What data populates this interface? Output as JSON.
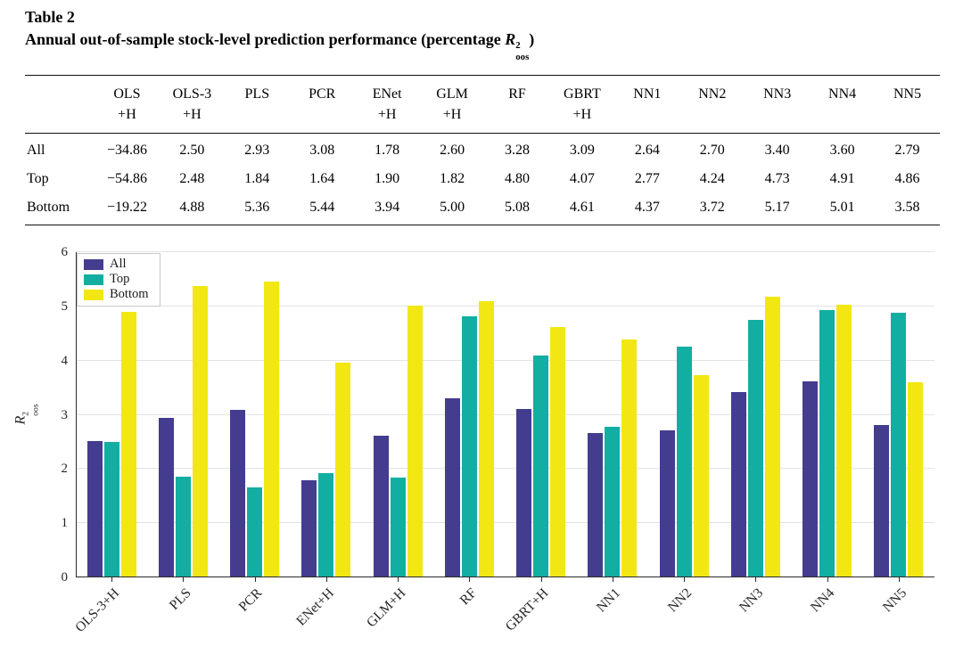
{
  "table": {
    "label": "Table 2",
    "caption_prefix": "Annual out-of-sample stock-level prediction performance (percentage ",
    "caption_math": {
      "base": "R",
      "sup": "2",
      "sub": "oos"
    },
    "caption_suffix": ")",
    "columns": [
      {
        "line1": "OLS",
        "line2": "+H"
      },
      {
        "line1": "OLS-3",
        "line2": "+H"
      },
      {
        "line1": "PLS",
        "line2": ""
      },
      {
        "line1": "PCR",
        "line2": ""
      },
      {
        "line1": "ENet",
        "line2": "+H"
      },
      {
        "line1": "GLM",
        "line2": "+H"
      },
      {
        "line1": "RF",
        "line2": ""
      },
      {
        "line1": "GBRT",
        "line2": "+H"
      },
      {
        "line1": "NN1",
        "line2": ""
      },
      {
        "line1": "NN2",
        "line2": ""
      },
      {
        "line1": "NN3",
        "line2": ""
      },
      {
        "line1": "NN4",
        "line2": ""
      },
      {
        "line1": "NN5",
        "line2": ""
      }
    ],
    "rows": [
      {
        "label": "All",
        "values": [
          "−34.86",
          "2.50",
          "2.93",
          "3.08",
          "1.78",
          "2.60",
          "3.28",
          "3.09",
          "2.64",
          "2.70",
          "3.40",
          "3.60",
          "2.79"
        ]
      },
      {
        "label": "Top",
        "values": [
          "−54.86",
          "2.48",
          "1.84",
          "1.64",
          "1.90",
          "1.82",
          "4.80",
          "4.07",
          "2.77",
          "4.24",
          "4.73",
          "4.91",
          "4.86"
        ]
      },
      {
        "label": "Bottom",
        "values": [
          "−19.22",
          "4.88",
          "5.36",
          "5.44",
          "3.94",
          "5.00",
          "5.08",
          "4.61",
          "4.37",
          "3.72",
          "5.17",
          "5.01",
          "3.58"
        ]
      }
    ]
  },
  "chart_data": {
    "type": "bar",
    "categories": [
      "OLS-3+H",
      "PLS",
      "PCR",
      "ENet+H",
      "GLM+H",
      "RF",
      "GBRT+H",
      "NN1",
      "NN2",
      "NN3",
      "NN4",
      "NN5"
    ],
    "series": [
      {
        "name": "All",
        "color": "#433C8F",
        "values": [
          2.5,
          2.93,
          3.08,
          1.78,
          2.6,
          3.28,
          3.09,
          2.64,
          2.7,
          3.4,
          3.6,
          2.79
        ]
      },
      {
        "name": "Top",
        "color": "#12AEA2",
        "values": [
          2.48,
          1.84,
          1.64,
          1.9,
          1.82,
          4.8,
          4.07,
          2.77,
          4.24,
          4.73,
          4.91,
          4.86
        ]
      },
      {
        "name": "Bottom",
        "color": "#F2E712",
        "values": [
          4.88,
          5.36,
          5.44,
          3.94,
          5.0,
          5.08,
          4.61,
          4.37,
          3.72,
          5.17,
          5.01,
          3.58
        ]
      }
    ],
    "title": "",
    "xlabel": "",
    "ylabel_math": {
      "base": "R",
      "sup": "2",
      "sub": "oos"
    },
    "ylim": [
      0,
      6
    ],
    "yticks": [
      0,
      1,
      2,
      3,
      4,
      5,
      6
    ],
    "grid": true,
    "legend_position": "top-left"
  }
}
